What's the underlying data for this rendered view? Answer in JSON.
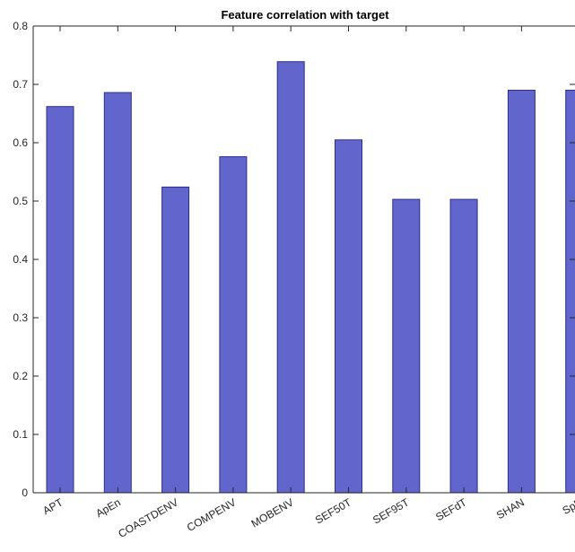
{
  "chart_data": {
    "type": "bar",
    "title": "Feature correlation with target",
    "xlabel": "",
    "ylabel": "",
    "categories": [
      "APT",
      "ApEn",
      "COASTDENV",
      "COMPENV",
      "MOBENV",
      "SEF50T",
      "SEF95T",
      "SEFdT",
      "SHAN",
      "SpE"
    ],
    "values": [
      0.662,
      0.686,
      0.524,
      0.576,
      0.739,
      0.605,
      0.503,
      0.503,
      0.69,
      0.69
    ],
    "ylim": [
      0,
      0.8
    ],
    "yticks": [
      "0",
      "0.1",
      "0.2",
      "0.3",
      "0.4",
      "0.5",
      "0.6",
      "0.7",
      "0.8"
    ],
    "grid": false,
    "legend": "none",
    "colors": {
      "bar": "#6265cc",
      "bar_edge": "#2c2f88",
      "axis": "#262626"
    }
  }
}
